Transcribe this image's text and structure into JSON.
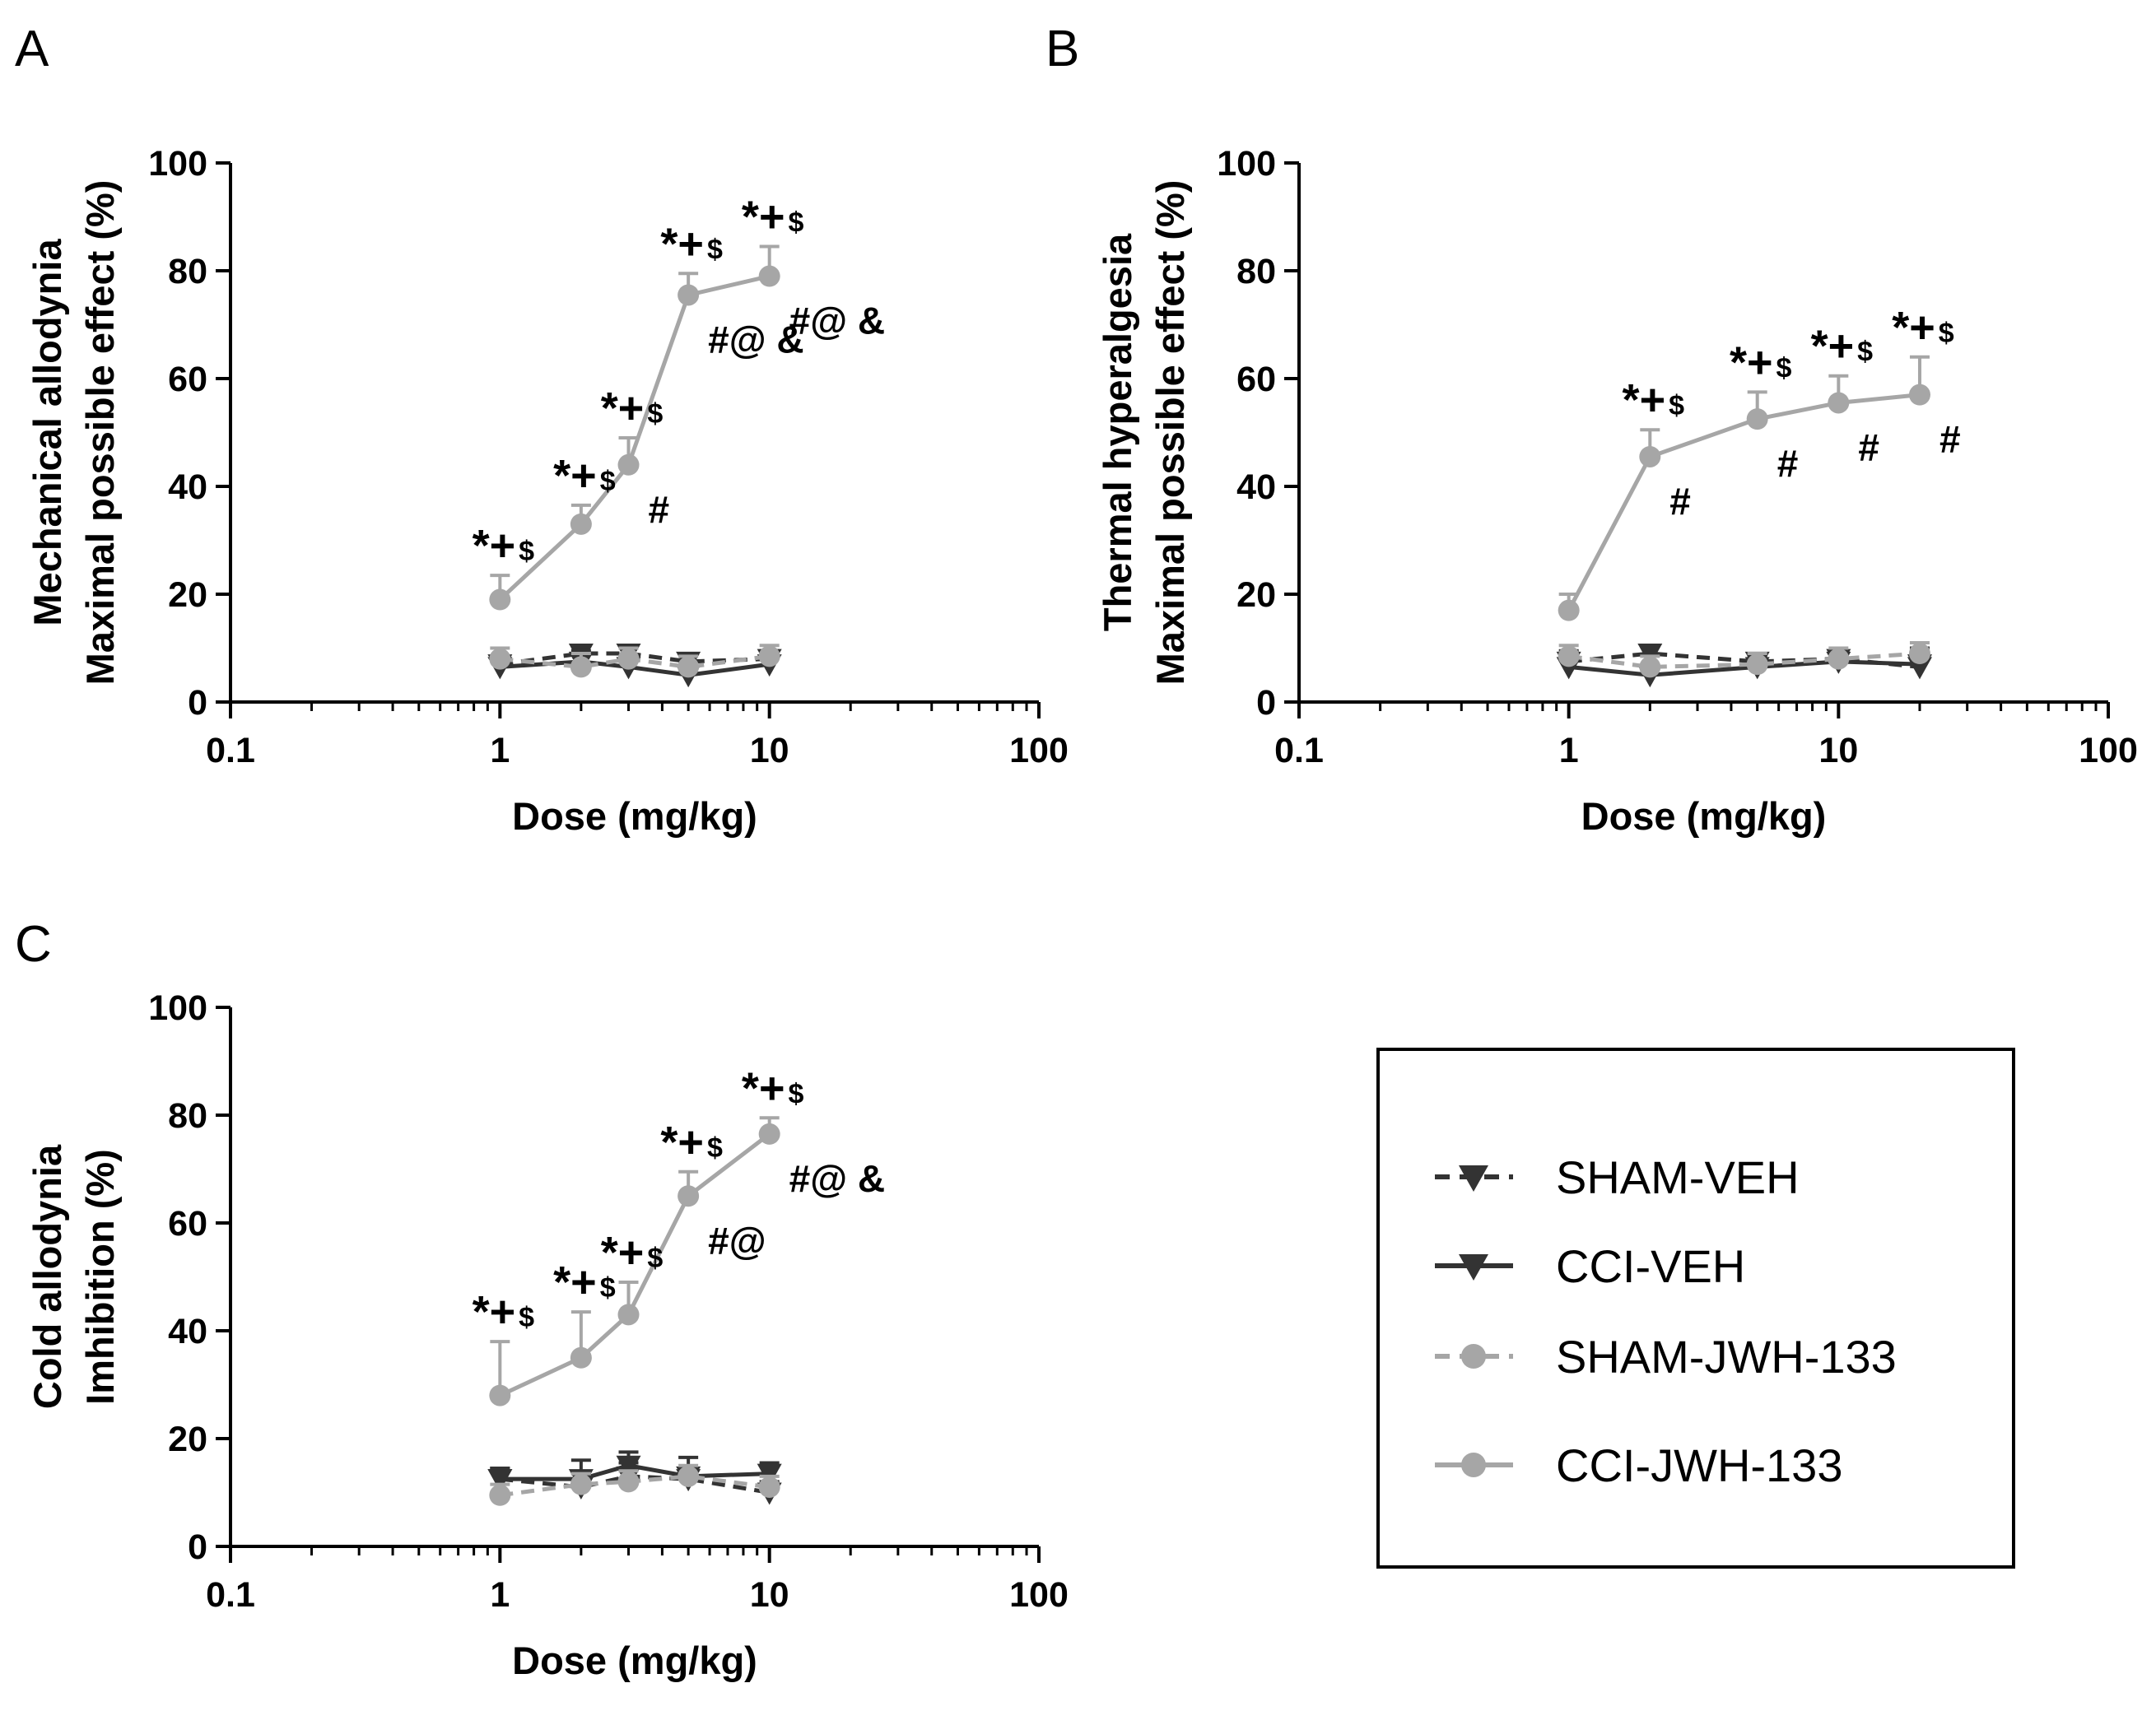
{
  "colors": {
    "veh": "#333333",
    "jwh": "#a6a6a6",
    "axis": "#000000"
  },
  "legend": {
    "entries": [
      {
        "label": "SHAM-VEH",
        "color": "#333333",
        "dashed": true,
        "marker": "triangle-down"
      },
      {
        "label": "CCI-VEH",
        "color": "#333333",
        "dashed": false,
        "marker": "triangle-down"
      },
      {
        "label": "SHAM-JWH-133",
        "color": "#a6a6a6",
        "dashed": true,
        "marker": "circle"
      },
      {
        "label": "CCI-JWH-133",
        "color": "#a6a6a6",
        "dashed": false,
        "marker": "circle"
      }
    ]
  },
  "chart_data": [
    {
      "panel": "A",
      "type": "line",
      "xlabel": "Dose (mg/kg)",
      "ylabel": [
        "Mechanical allodynia",
        "Maximal possible effect (%)"
      ],
      "xscale": "log",
      "xlim": [
        0.1,
        100
      ],
      "ylim": [
        0,
        100
      ],
      "xticks": [
        "0.1",
        "1",
        "10",
        "100"
      ],
      "yticks": [
        "0",
        "20",
        "40",
        "60",
        "80",
        "100"
      ],
      "series": [
        {
          "name": "SHAM-VEH",
          "x": [
            1,
            2,
            3,
            5,
            10
          ],
          "y": [
            7,
            9,
            9,
            7.5,
            8
          ],
          "err": [
            1.5,
            1.5,
            1.5,
            1.5,
            1.5
          ]
        },
        {
          "name": "CCI-VEH",
          "x": [
            1,
            2,
            3,
            5,
            10
          ],
          "y": [
            6.5,
            7.5,
            6.5,
            5,
            7
          ],
          "err": [
            2,
            2,
            1.5,
            1.5,
            2
          ]
        },
        {
          "name": "SHAM-JWH-133",
          "x": [
            1,
            2,
            3,
            5,
            10
          ],
          "y": [
            8,
            6.5,
            8,
            6.5,
            8.5
          ],
          "err": [
            2,
            2.5,
            2,
            2,
            2
          ]
        },
        {
          "name": "CCI-JWH-133",
          "x": [
            1,
            2,
            3,
            5,
            10
          ],
          "y": [
            19,
            33,
            44,
            75.5,
            79
          ],
          "err": [
            4.5,
            3.5,
            5,
            4,
            5.5
          ]
        }
      ],
      "annotations": [
        {
          "x": 1,
          "above": "*+$",
          "below": ""
        },
        {
          "x": 2,
          "above": "*+$",
          "below": ""
        },
        {
          "x": 3,
          "above": "*+$",
          "below": "#"
        },
        {
          "x": 5,
          "above": "*+$",
          "below": "#@ &"
        },
        {
          "x": 10,
          "above": "*+$",
          "below": "#@ &"
        }
      ]
    },
    {
      "panel": "B",
      "type": "line",
      "xlabel": "Dose (mg/kg)",
      "ylabel": [
        "Thermal hyperalgesia",
        "Maximal possible effect (%)"
      ],
      "xscale": "log",
      "xlim": [
        0.1,
        100
      ],
      "ylim": [
        0,
        100
      ],
      "xticks": [
        "0.1",
        "1",
        "10",
        "100"
      ],
      "yticks": [
        "0",
        "20",
        "40",
        "60",
        "80",
        "100"
      ],
      "series": [
        {
          "name": "SHAM-VEH",
          "x": [
            1,
            2,
            5,
            10,
            20
          ],
          "y": [
            7.5,
            9,
            7.5,
            8,
            6.5
          ],
          "err": [
            2,
            1.5,
            1.5,
            1.5,
            1.5
          ]
        },
        {
          "name": "CCI-VEH",
          "x": [
            1,
            2,
            5,
            10,
            20
          ],
          "y": [
            6.5,
            5,
            6.5,
            7.5,
            7
          ],
          "err": [
            2,
            1.5,
            2,
            2,
            3
          ]
        },
        {
          "name": "SHAM-JWH-133",
          "x": [
            1,
            2,
            5,
            10,
            20
          ],
          "y": [
            8.5,
            6.5,
            7,
            8,
            9
          ],
          "err": [
            2,
            2,
            2,
            2,
            2
          ]
        },
        {
          "name": "CCI-JWH-133",
          "x": [
            1,
            2,
            5,
            10,
            20
          ],
          "y": [
            17,
            45.5,
            52.5,
            55.5,
            57
          ],
          "err": [
            3,
            5,
            5,
            5,
            7
          ]
        }
      ],
      "annotations": [
        {
          "x": 2,
          "above": "*+$",
          "below": "#"
        },
        {
          "x": 5,
          "above": "*+$",
          "below": "#"
        },
        {
          "x": 10,
          "above": "*+$",
          "below": "#"
        },
        {
          "x": 20,
          "above": "*+$",
          "below": "#"
        }
      ]
    },
    {
      "panel": "C",
      "type": "line",
      "xlabel": "Dose (mg/kg)",
      "ylabel": [
        "Cold allodynia",
        "Imhibition (%)"
      ],
      "xscale": "log",
      "xlim": [
        0.1,
        100
      ],
      "ylim": [
        0,
        100
      ],
      "xticks": [
        "0.1",
        "1",
        "10",
        "100"
      ],
      "yticks": [
        "0",
        "20",
        "40",
        "60",
        "80",
        "100"
      ],
      "series": [
        {
          "name": "SHAM-VEH",
          "x": [
            1,
            2,
            3,
            5,
            10
          ],
          "y": [
            12.5,
            11,
            13,
            12.5,
            10
          ],
          "err": [
            2,
            2.5,
            2.5,
            2,
            2
          ]
        },
        {
          "name": "CCI-VEH",
          "x": [
            1,
            2,
            3,
            5,
            10
          ],
          "y": [
            12.5,
            12.5,
            15,
            13,
            13.5
          ],
          "err": [
            2,
            3.5,
            2.5,
            3.5,
            2
          ]
        },
        {
          "name": "SHAM-JWH-133",
          "x": [
            1,
            2,
            3,
            5,
            10
          ],
          "y": [
            9.5,
            11.5,
            12,
            13,
            11
          ],
          "err": [
            2,
            2,
            2,
            2,
            2
          ]
        },
        {
          "name": "CCI-JWH-133",
          "x": [
            1,
            2,
            3,
            5,
            10
          ],
          "y": [
            28,
            35,
            43,
            65,
            76.5
          ],
          "err": [
            10,
            8.5,
            6,
            4.5,
            3
          ]
        }
      ],
      "annotations": [
        {
          "x": 1,
          "above": "*+$",
          "below": ""
        },
        {
          "x": 2,
          "above": "*+$",
          "below": ""
        },
        {
          "x": 3,
          "above": "*+$",
          "below": ""
        },
        {
          "x": 5,
          "above": "*+$",
          "below": "#@"
        },
        {
          "x": 10,
          "above": "*+$",
          "below": "#@ &"
        }
      ]
    }
  ]
}
